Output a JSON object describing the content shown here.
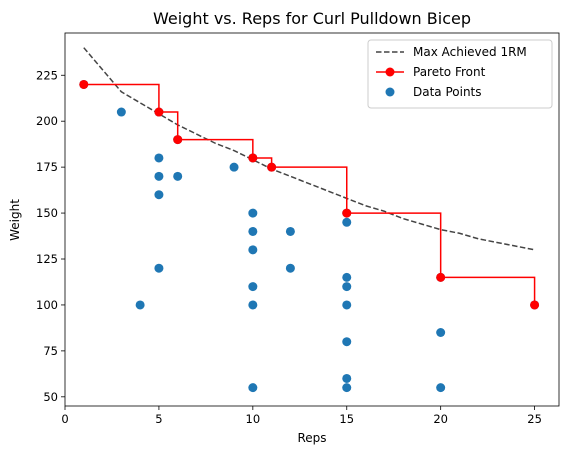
{
  "chart_data": {
    "type": "scatter",
    "title": "Weight vs. Reps for Curl Pulldown Bicep",
    "xlabel": "Reps",
    "ylabel": "Weight",
    "xlim": [
      0,
      26.3
    ],
    "ylim": [
      45,
      248
    ],
    "xticks": [
      0,
      5,
      10,
      15,
      20,
      25
    ],
    "yticks": [
      50,
      75,
      100,
      125,
      150,
      175,
      200,
      225
    ],
    "grid": false,
    "legend_position": "top-right",
    "series": [
      {
        "name": "Max Achieved 1RM",
        "kind": "line",
        "style": "dashed",
        "color": "#444444",
        "x": [
          1,
          2,
          3,
          4,
          5,
          6,
          7,
          8,
          9,
          10,
          11,
          12,
          13,
          14,
          15,
          16,
          17,
          18,
          19,
          20,
          21,
          22,
          23,
          24,
          25
        ],
        "y": [
          240,
          228,
          216,
          210,
          204,
          198,
          193,
          188,
          184,
          179,
          174,
          170,
          166,
          162,
          158,
          154,
          151,
          147,
          144,
          141,
          139,
          136,
          134,
          132,
          130
        ]
      },
      {
        "name": "Pareto Front",
        "kind": "step",
        "color": "#ff0000",
        "x": [
          1,
          5,
          6,
          10,
          11,
          15,
          20,
          25
        ],
        "y": [
          220,
          205,
          190,
          180,
          175,
          150,
          115,
          100
        ]
      },
      {
        "name": "Data Points",
        "kind": "scatter",
        "color": "#1f77b4",
        "x": [
          1,
          3,
          5,
          5,
          5,
          5,
          5,
          6,
          6,
          9,
          10,
          10,
          10,
          10,
          10,
          10,
          10,
          11,
          12,
          12,
          15,
          15,
          15,
          15,
          15,
          15,
          15,
          15,
          20,
          20,
          20,
          25,
          4
        ],
        "y": [
          220,
          205,
          205,
          180,
          170,
          160,
          120,
          190,
          170,
          175,
          180,
          150,
          140,
          130,
          110,
          100,
          55,
          175,
          140,
          120,
          150,
          145,
          115,
          110,
          100,
          80,
          60,
          55,
          115,
          85,
          55,
          100,
          100
        ]
      }
    ],
    "legend": [
      {
        "label": "Max Achieved 1RM",
        "marker": "dashed-line"
      },
      {
        "label": "Pareto Front",
        "marker": "line-dot"
      },
      {
        "label": "Data Points",
        "marker": "dot"
      }
    ]
  }
}
